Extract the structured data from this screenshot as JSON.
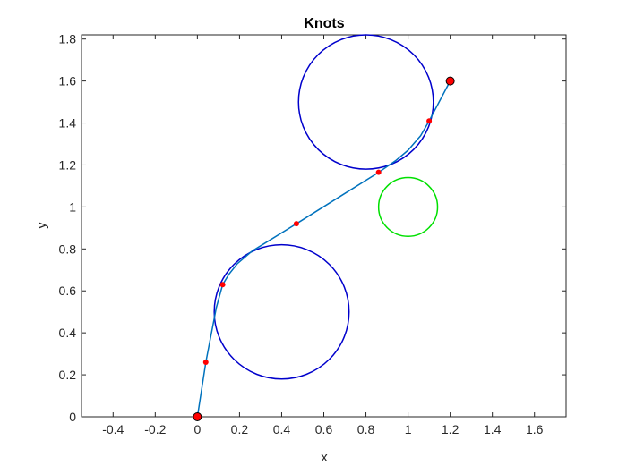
{
  "chart_data": {
    "type": "line",
    "title": "Knots",
    "xlabel": "x",
    "ylabel": "y",
    "xlim": [
      -0.55,
      1.75
    ],
    "ylim": [
      0,
      1.82
    ],
    "xticks": [
      -0.4,
      -0.2,
      0,
      0.2,
      0.4,
      0.6,
      0.8,
      1,
      1.2,
      1.4,
      1.6
    ],
    "xtick_labels": [
      "-0.4",
      "-0.2",
      "0",
      "0.2",
      "0.4",
      "0.6",
      "0.8",
      "1",
      "1.2",
      "1.4",
      "1.6"
    ],
    "yticks": [
      0,
      0.2,
      0.4,
      0.6,
      0.8,
      1,
      1.2,
      1.4,
      1.6,
      1.8
    ],
    "ytick_labels": [
      "0",
      "0.2",
      "0.4",
      "0.6",
      "0.8",
      "1",
      "1.2",
      "1.4",
      "1.6",
      "1.8"
    ],
    "grid": false,
    "circles": [
      {
        "cx": 0.4,
        "cy": 0.5,
        "r": 0.32,
        "color": "#0000cc"
      },
      {
        "cx": 0.8,
        "cy": 1.5,
        "r": 0.32,
        "color": "#0000cc"
      },
      {
        "cx": 1.0,
        "cy": 1.0,
        "r": 0.14,
        "color": "#00e000"
      }
    ],
    "path": {
      "color": "#0072bd",
      "points": [
        [
          0.0,
          0.0
        ],
        [
          0.04,
          0.26
        ],
        [
          0.09,
          0.52
        ],
        [
          0.12,
          0.63
        ],
        [
          0.15,
          0.68
        ],
        [
          0.19,
          0.73
        ],
        [
          0.26,
          0.79
        ],
        [
          0.47,
          0.92
        ],
        [
          0.86,
          1.165
        ],
        [
          0.94,
          1.22
        ],
        [
          1.0,
          1.27
        ],
        [
          1.06,
          1.34
        ],
        [
          1.1,
          1.41
        ],
        [
          1.2,
          1.6
        ]
      ]
    },
    "knots": {
      "color": "#ff0000",
      "points": [
        [
          0.04,
          0.26
        ],
        [
          0.12,
          0.63
        ],
        [
          0.47,
          0.92
        ],
        [
          0.86,
          1.165
        ],
        [
          1.1,
          1.41
        ]
      ]
    },
    "endpoints": {
      "color": "#ff0000",
      "points": [
        [
          0.0,
          0.0
        ],
        [
          1.2,
          1.6
        ]
      ]
    }
  }
}
